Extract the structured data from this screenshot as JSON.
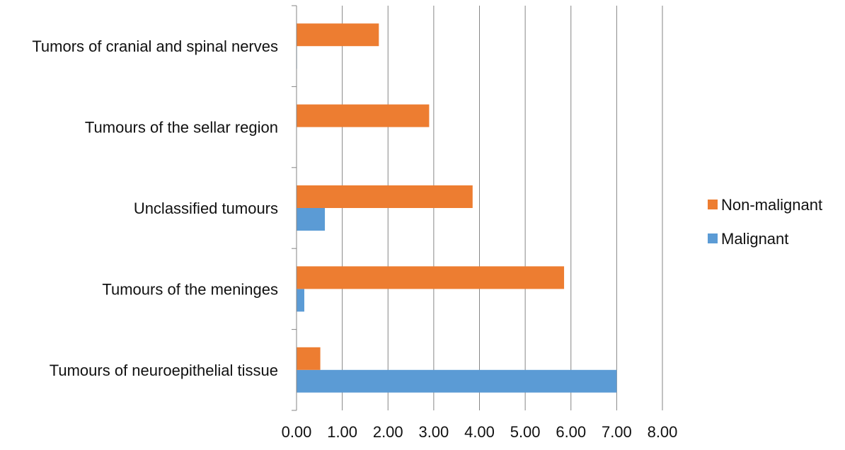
{
  "chart_data": {
    "type": "bar",
    "orientation": "horizontal",
    "categories": [
      "Tumours of neuroepithelial tissue",
      "Tumours of the meninges",
      "Unclassified tumours",
      "Tumours of the sellar region",
      "Tumors of cranial and spinal nerves"
    ],
    "series": [
      {
        "name": "Malignant",
        "color": "#5B9BD5",
        "values": [
          7.0,
          0.17,
          0.62,
          0.0,
          0.01
        ]
      },
      {
        "name": "Non-malignant",
        "color": "#ED7D31",
        "values": [
          0.52,
          5.85,
          3.85,
          2.9,
          1.8
        ]
      }
    ],
    "xlim": [
      0,
      8
    ],
    "xticks": [
      "0.00",
      "1.00",
      "2.00",
      "3.00",
      "4.00",
      "5.00",
      "6.00",
      "7.00",
      "8.00"
    ],
    "title": "",
    "xlabel": "",
    "ylabel": "",
    "grid": "vertical",
    "legend": {
      "placement": "right",
      "entries": [
        "Non-malignant",
        "Malignant"
      ]
    }
  }
}
